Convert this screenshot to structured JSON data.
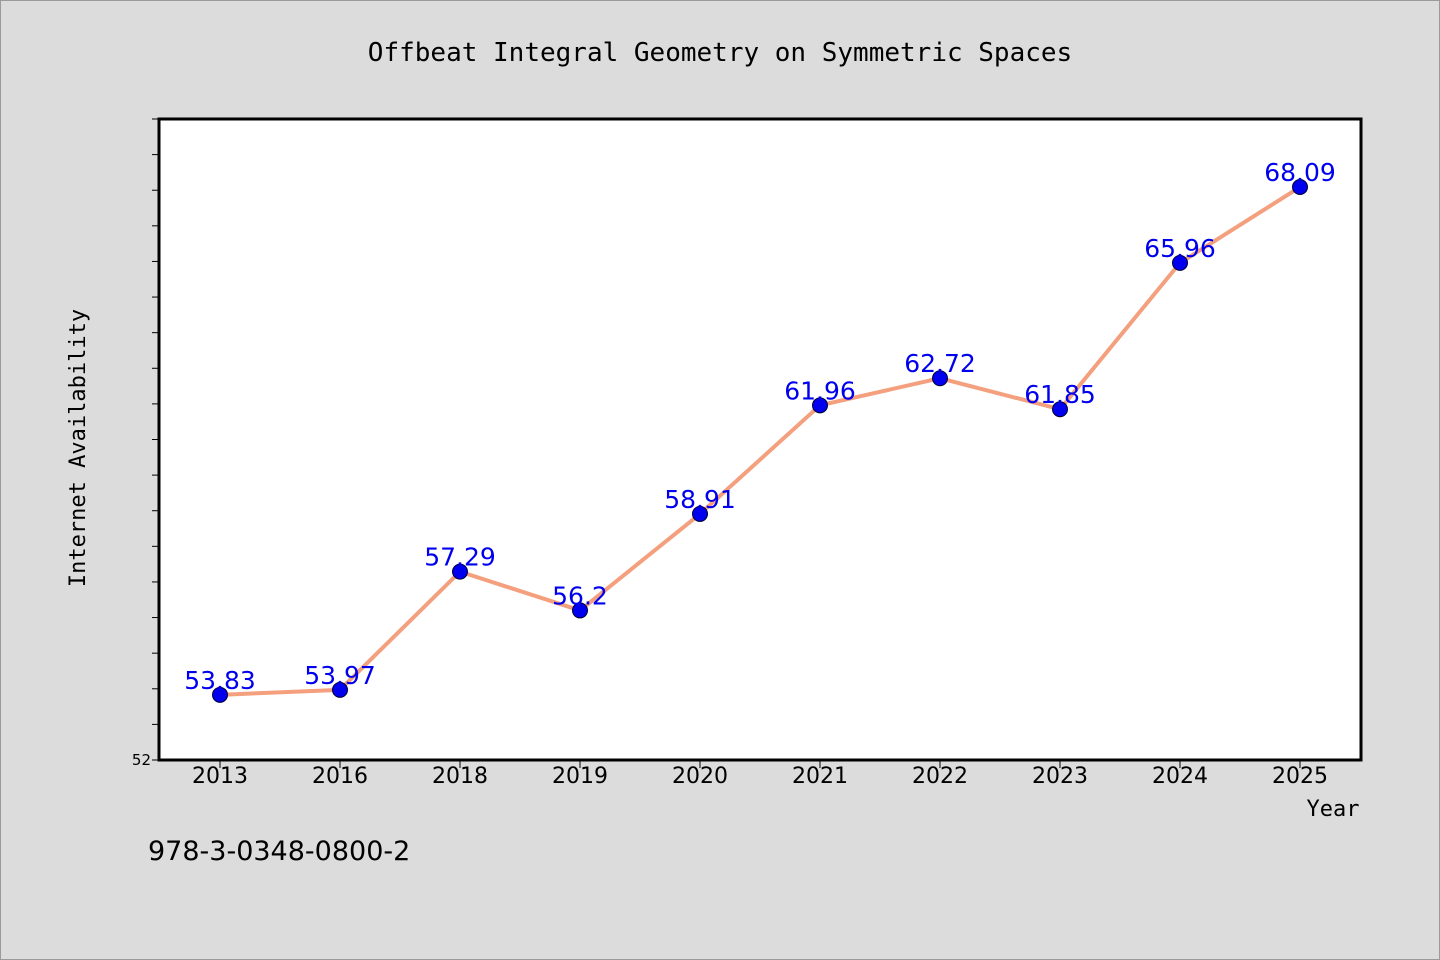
{
  "isbn": "978-3-0348-0800-2",
  "colors": {
    "background": "#dcdcdc",
    "plot_background": "#ffffff",
    "line": "#f4a07e",
    "marker": "#0000ee",
    "data_label": "#0000ee"
  },
  "chart_data": {
    "type": "line",
    "title": "Offbeat Integral Geometry on Symmetric Spaces",
    "xlabel": "Year",
    "ylabel": "Internet Availability",
    "categories": [
      "2013",
      "2016",
      "2018",
      "2019",
      "2020",
      "2021",
      "2022",
      "2023",
      "2024",
      "2025"
    ],
    "series": [
      {
        "values": [
          53.83,
          53.97,
          57.29,
          56.2,
          58.91,
          61.96,
          62.72,
          61.85,
          65.96,
          68.09
        ]
      }
    ],
    "data_labels": [
      "53.83",
      "53.97",
      "57.29",
      "56.2",
      "58.91",
      "61.96",
      "62.72",
      "61.85",
      "65.96",
      "68.09"
    ],
    "ylim": [
      52,
      70
    ],
    "y_tick_labels": [
      "52"
    ],
    "grid": false,
    "legend": "none"
  }
}
